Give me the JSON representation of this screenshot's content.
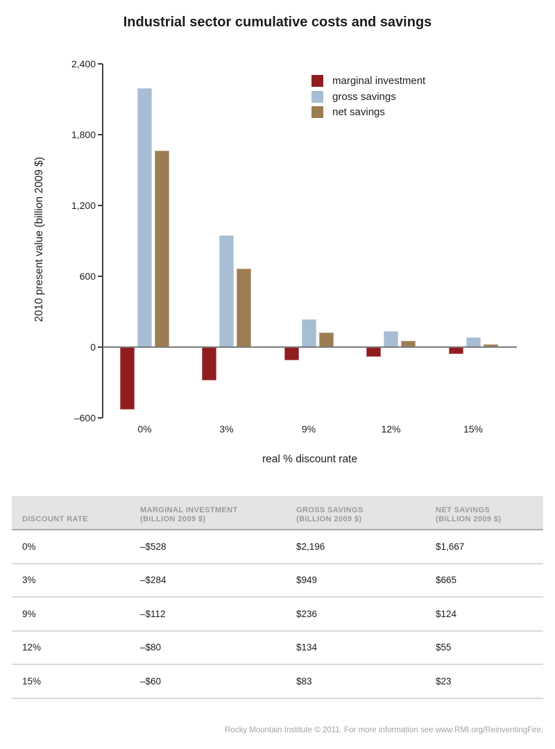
{
  "chart_data": {
    "type": "bar",
    "title": "Industrial sector cumulative costs and savings",
    "categories": [
      "0%",
      "3%",
      "9%",
      "12%",
      "15%"
    ],
    "series": [
      {
        "name": "marginal investment",
        "color": "#911c20",
        "values": [
          -528,
          -284,
          -112,
          -80,
          -60
        ]
      },
      {
        "name": "gross savings",
        "color": "#a7bdd3",
        "values": [
          2196,
          949,
          236,
          134,
          83
        ]
      },
      {
        "name": "net savings",
        "color": "#9c7d53",
        "values": [
          1667,
          665,
          124,
          55,
          23
        ]
      }
    ],
    "xlabel": "real % discount rate",
    "ylabel": "2010 present value (billion 2009 $)",
    "ylim": [
      -600,
      2400
    ],
    "yticks": [
      {
        "value": 2400,
        "label": "2,400"
      },
      {
        "value": 1800,
        "label": "1,800"
      },
      {
        "value": 1200,
        "label": "1,200"
      },
      {
        "value": 600,
        "label": "600"
      },
      {
        "value": 0,
        "label": "0"
      },
      {
        "value": -600,
        "label": "–600"
      }
    ],
    "legend_position": "top-right-inside",
    "grid": false
  },
  "table": {
    "columns": [
      {
        "label": "DISCOUNT RATE",
        "sublabel": ""
      },
      {
        "label": "MARGINAL INVESTMENT",
        "sublabel": "(BILLION 2009 $)"
      },
      {
        "label": "GROSS SAVINGS",
        "sublabel": "(BILLION 2009 $)"
      },
      {
        "label": "NET SAVINGS",
        "sublabel": "(BILLION 2009 $)"
      }
    ],
    "rows": [
      [
        "0%",
        "–$528",
        "$2,196",
        "$1,667"
      ],
      [
        "3%",
        "–$284",
        "$949",
        "$665"
      ],
      [
        "9%",
        "–$112",
        "$236",
        "$124"
      ],
      [
        "12%",
        "–$80",
        "$134",
        "$55"
      ],
      [
        "15%",
        "–$60",
        "$83",
        "$23"
      ]
    ]
  },
  "footer": {
    "credit": "Rocky Mountain Institute © 2011. For more information see www.RMI.org/ReinventingFire."
  }
}
